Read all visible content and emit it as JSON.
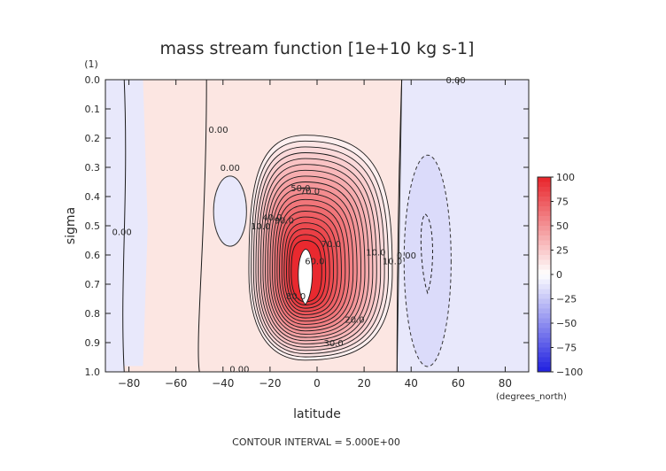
{
  "chart_data": {
    "type": "contour",
    "title": "mass stream function [1e+10 kg s-1]",
    "xlabel": "latitude",
    "xunit": "(degrees_north)",
    "ylabel": "sigma",
    "yunit": "(1)",
    "footer": "CONTOUR INTERVAL = 5.000E+00",
    "xlim": [
      -90,
      90
    ],
    "ylim": [
      1.0,
      0.0
    ],
    "x_ticks": [
      -80,
      -60,
      -40,
      -20,
      0,
      20,
      40,
      60,
      80
    ],
    "y_ticks": [
      0.0,
      0.1,
      0.2,
      0.3,
      0.4,
      0.5,
      0.6,
      0.7,
      0.8,
      0.9,
      1.0
    ],
    "x_tick_labels": [
      "−80",
      "−60",
      "−40",
      "−20",
      "0",
      "20",
      "40",
      "60",
      "80"
    ],
    "y_tick_labels": [
      "0.0",
      "0.1",
      "0.2",
      "0.3",
      "0.4",
      "0.5",
      "0.6",
      "0.7",
      "0.8",
      "0.9",
      "1.0"
    ],
    "contour_interval": 5.0,
    "features": [
      {
        "kind": "max",
        "lat": -5,
        "sigma": 0.68,
        "value": 100
      },
      {
        "kind": "min",
        "lat": 47,
        "sigma": 0.6,
        "value": -15
      }
    ],
    "contour_labels": [
      {
        "text": "0.00",
        "lat": 59,
        "sigma": 0.0
      },
      {
        "text": "0.00",
        "lat": -42,
        "sigma": 0.17
      },
      {
        "text": "0.00",
        "lat": -37,
        "sigma": 0.3
      },
      {
        "text": "0.00",
        "lat": -83,
        "sigma": 0.52
      },
      {
        "text": "0.00",
        "lat": 38,
        "sigma": 0.6
      },
      {
        "text": "0.00",
        "lat": -33,
        "sigma": 0.99
      },
      {
        "text": "10.0",
        "lat": -24,
        "sigma": 0.5
      },
      {
        "text": "10.0",
        "lat": 25,
        "sigma": 0.59
      },
      {
        "text": "10.0",
        "lat": 32,
        "sigma": 0.62
      },
      {
        "text": "20.0",
        "lat": 16,
        "sigma": 0.82
      },
      {
        "text": "30.0",
        "lat": 7,
        "sigma": 0.9
      },
      {
        "text": "40.0",
        "lat": -19,
        "sigma": 0.47
      },
      {
        "text": "50.0",
        "lat": -7,
        "sigma": 0.37
      },
      {
        "text": "60.0",
        "lat": -1,
        "sigma": 0.62
      },
      {
        "text": "70.0",
        "lat": -3,
        "sigma": 0.38
      },
      {
        "text": "70.0",
        "lat": 6,
        "sigma": 0.56
      },
      {
        "text": "80.0",
        "lat": -9,
        "sigma": 0.74
      },
      {
        "text": "90.0",
        "lat": -14,
        "sigma": 0.48
      }
    ],
    "colorbar": {
      "min": -100,
      "max": 100,
      "ticks": [
        100,
        75,
        50,
        25,
        0,
        -25,
        -50,
        -75,
        -100
      ],
      "tick_labels": [
        "100",
        "75",
        "50",
        "25",
        "0",
        "−25",
        "−50",
        "−75",
        "−100"
      ]
    }
  },
  "colors": {
    "positive": "#e8242a",
    "negative": "#1f1fe0",
    "neutral": "#ffffff",
    "background_positive": "#fce6e2",
    "background_negative": "#e8e8fb"
  }
}
